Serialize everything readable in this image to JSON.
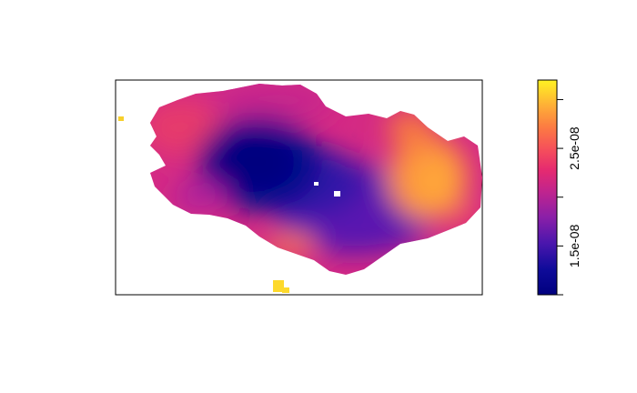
{
  "map": {
    "type": "raster",
    "palette": [
      "#00007f",
      "#2a10a8",
      "#6a1ab0",
      "#a2239e",
      "#d8267f",
      "#f23e62",
      "#fb6b48",
      "#fd9a3a",
      "#ffc830",
      "#fff322"
    ],
    "legend": {
      "position": "right",
      "ticks": [
        {
          "label": "1.5e-08",
          "value": 1.5e-08
        },
        {
          "label": "2.5e-08",
          "value": 2.5e-08
        }
      ],
      "range": [
        1e-08,
        3.2e-08
      ]
    }
  }
}
